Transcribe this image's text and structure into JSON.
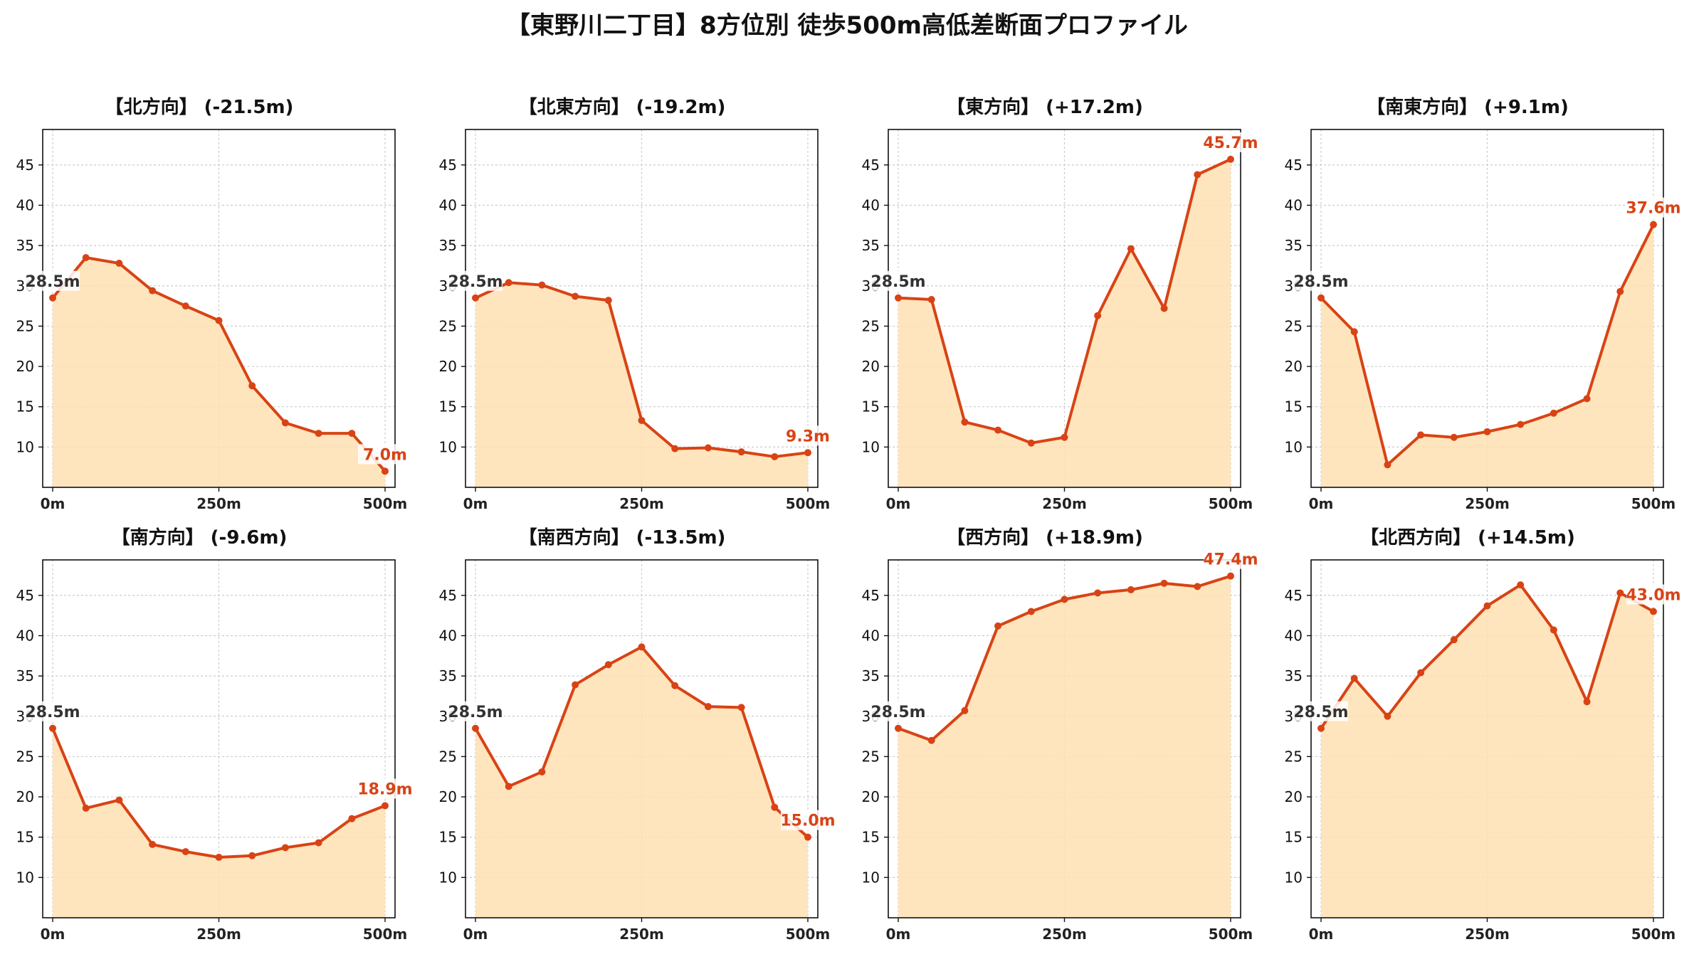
{
  "title": "【東野川二丁目】8方位別 徒歩500m高低差断面プロファイル",
  "colors": {
    "line": "#d84315",
    "fill": "#ffe0b2",
    "grid": "#cccccc",
    "start_label": "#333333",
    "end_label": "#d84315"
  },
  "chart_data": [
    {
      "type": "area",
      "title": "【北方向】 (-21.5m)",
      "x": [
        0,
        50,
        100,
        150,
        200,
        250,
        300,
        350,
        400,
        450,
        500
      ],
      "values": [
        28.5,
        33.5,
        32.8,
        29.4,
        27.5,
        25.7,
        17.6,
        13.0,
        11.7,
        11.7,
        7.0
      ],
      "x_ticks": [
        "0m",
        "250m",
        "500m"
      ],
      "y_ticks": [
        10,
        15,
        20,
        25,
        30,
        35,
        40,
        45
      ],
      "ylim": [
        5,
        49.4
      ],
      "start_label": "28.5m",
      "end_label": "7.0m",
      "grid": true
    },
    {
      "type": "area",
      "title": "【北東方向】 (-19.2m)",
      "x": [
        0,
        50,
        100,
        150,
        200,
        250,
        300,
        350,
        400,
        450,
        500
      ],
      "values": [
        28.5,
        30.4,
        30.1,
        28.7,
        28.2,
        13.3,
        9.8,
        9.9,
        9.4,
        8.8,
        9.3
      ],
      "x_ticks": [
        "0m",
        "250m",
        "500m"
      ],
      "y_ticks": [
        10,
        15,
        20,
        25,
        30,
        35,
        40,
        45
      ],
      "ylim": [
        5,
        49.4
      ],
      "start_label": "28.5m",
      "end_label": "9.3m",
      "grid": true
    },
    {
      "type": "area",
      "title": "【東方向】 (+17.2m)",
      "x": [
        0,
        50,
        100,
        150,
        200,
        250,
        300,
        350,
        400,
        450,
        500
      ],
      "values": [
        28.5,
        28.3,
        13.1,
        12.1,
        10.5,
        11.2,
        26.3,
        34.6,
        27.2,
        43.8,
        45.7
      ],
      "x_ticks": [
        "0m",
        "250m",
        "500m"
      ],
      "y_ticks": [
        10,
        15,
        20,
        25,
        30,
        35,
        40,
        45
      ],
      "ylim": [
        5,
        49.4
      ],
      "start_label": "28.5m",
      "end_label": "45.7m",
      "grid": true
    },
    {
      "type": "area",
      "title": "【南東方向】 (+9.1m)",
      "x": [
        0,
        50,
        100,
        150,
        200,
        250,
        300,
        350,
        400,
        450,
        500
      ],
      "values": [
        28.5,
        24.3,
        7.8,
        11.5,
        11.2,
        11.9,
        12.8,
        14.2,
        16.0,
        29.3,
        37.6
      ],
      "x_ticks": [
        "0m",
        "250m",
        "500m"
      ],
      "y_ticks": [
        10,
        15,
        20,
        25,
        30,
        35,
        40,
        45
      ],
      "ylim": [
        5,
        49.4
      ],
      "start_label": "28.5m",
      "end_label": "37.6m",
      "grid": true
    },
    {
      "type": "area",
      "title": "【南方向】 (-9.6m)",
      "x": [
        0,
        50,
        100,
        150,
        200,
        250,
        300,
        350,
        400,
        450,
        500
      ],
      "values": [
        28.5,
        18.6,
        19.6,
        14.1,
        13.2,
        12.5,
        12.7,
        13.7,
        14.3,
        17.3,
        18.9
      ],
      "x_ticks": [
        "0m",
        "250m",
        "500m"
      ],
      "y_ticks": [
        10,
        15,
        20,
        25,
        30,
        35,
        40,
        45
      ],
      "ylim": [
        5,
        49.4
      ],
      "start_label": "28.5m",
      "end_label": "18.9m",
      "grid": true
    },
    {
      "type": "area",
      "title": "【南西方向】 (-13.5m)",
      "x": [
        0,
        50,
        100,
        150,
        200,
        250,
        300,
        350,
        400,
        450,
        500
      ],
      "values": [
        28.5,
        21.3,
        23.1,
        33.9,
        36.4,
        38.6,
        33.8,
        31.2,
        31.1,
        18.7,
        15.0
      ],
      "x_ticks": [
        "0m",
        "250m",
        "500m"
      ],
      "y_ticks": [
        10,
        15,
        20,
        25,
        30,
        35,
        40,
        45
      ],
      "ylim": [
        5,
        49.4
      ],
      "start_label": "28.5m",
      "end_label": "15.0m",
      "grid": true
    },
    {
      "type": "area",
      "title": "【西方向】 (+18.9m)",
      "x": [
        0,
        50,
        100,
        150,
        200,
        250,
        300,
        350,
        400,
        450,
        500
      ],
      "values": [
        28.5,
        27.0,
        30.7,
        41.2,
        43.0,
        44.5,
        45.3,
        45.7,
        46.5,
        46.1,
        47.4
      ],
      "x_ticks": [
        "0m",
        "250m",
        "500m"
      ],
      "y_ticks": [
        10,
        15,
        20,
        25,
        30,
        35,
        40,
        45
      ],
      "ylim": [
        5,
        49.4
      ],
      "start_label": "28.5m",
      "end_label": "47.4m",
      "grid": true
    },
    {
      "type": "area",
      "title": "【北西方向】 (+14.5m)",
      "x": [
        0,
        50,
        100,
        150,
        200,
        250,
        300,
        350,
        400,
        450,
        500
      ],
      "values": [
        28.5,
        34.7,
        30.0,
        35.4,
        39.5,
        43.7,
        46.3,
        40.7,
        31.8,
        45.3,
        43.0
      ],
      "x_ticks": [
        "0m",
        "250m",
        "500m"
      ],
      "y_ticks": [
        10,
        15,
        20,
        25,
        30,
        35,
        40,
        45
      ],
      "ylim": [
        5,
        49.4
      ],
      "start_label": "28.5m",
      "end_label": "43.0m",
      "grid": true
    }
  ]
}
